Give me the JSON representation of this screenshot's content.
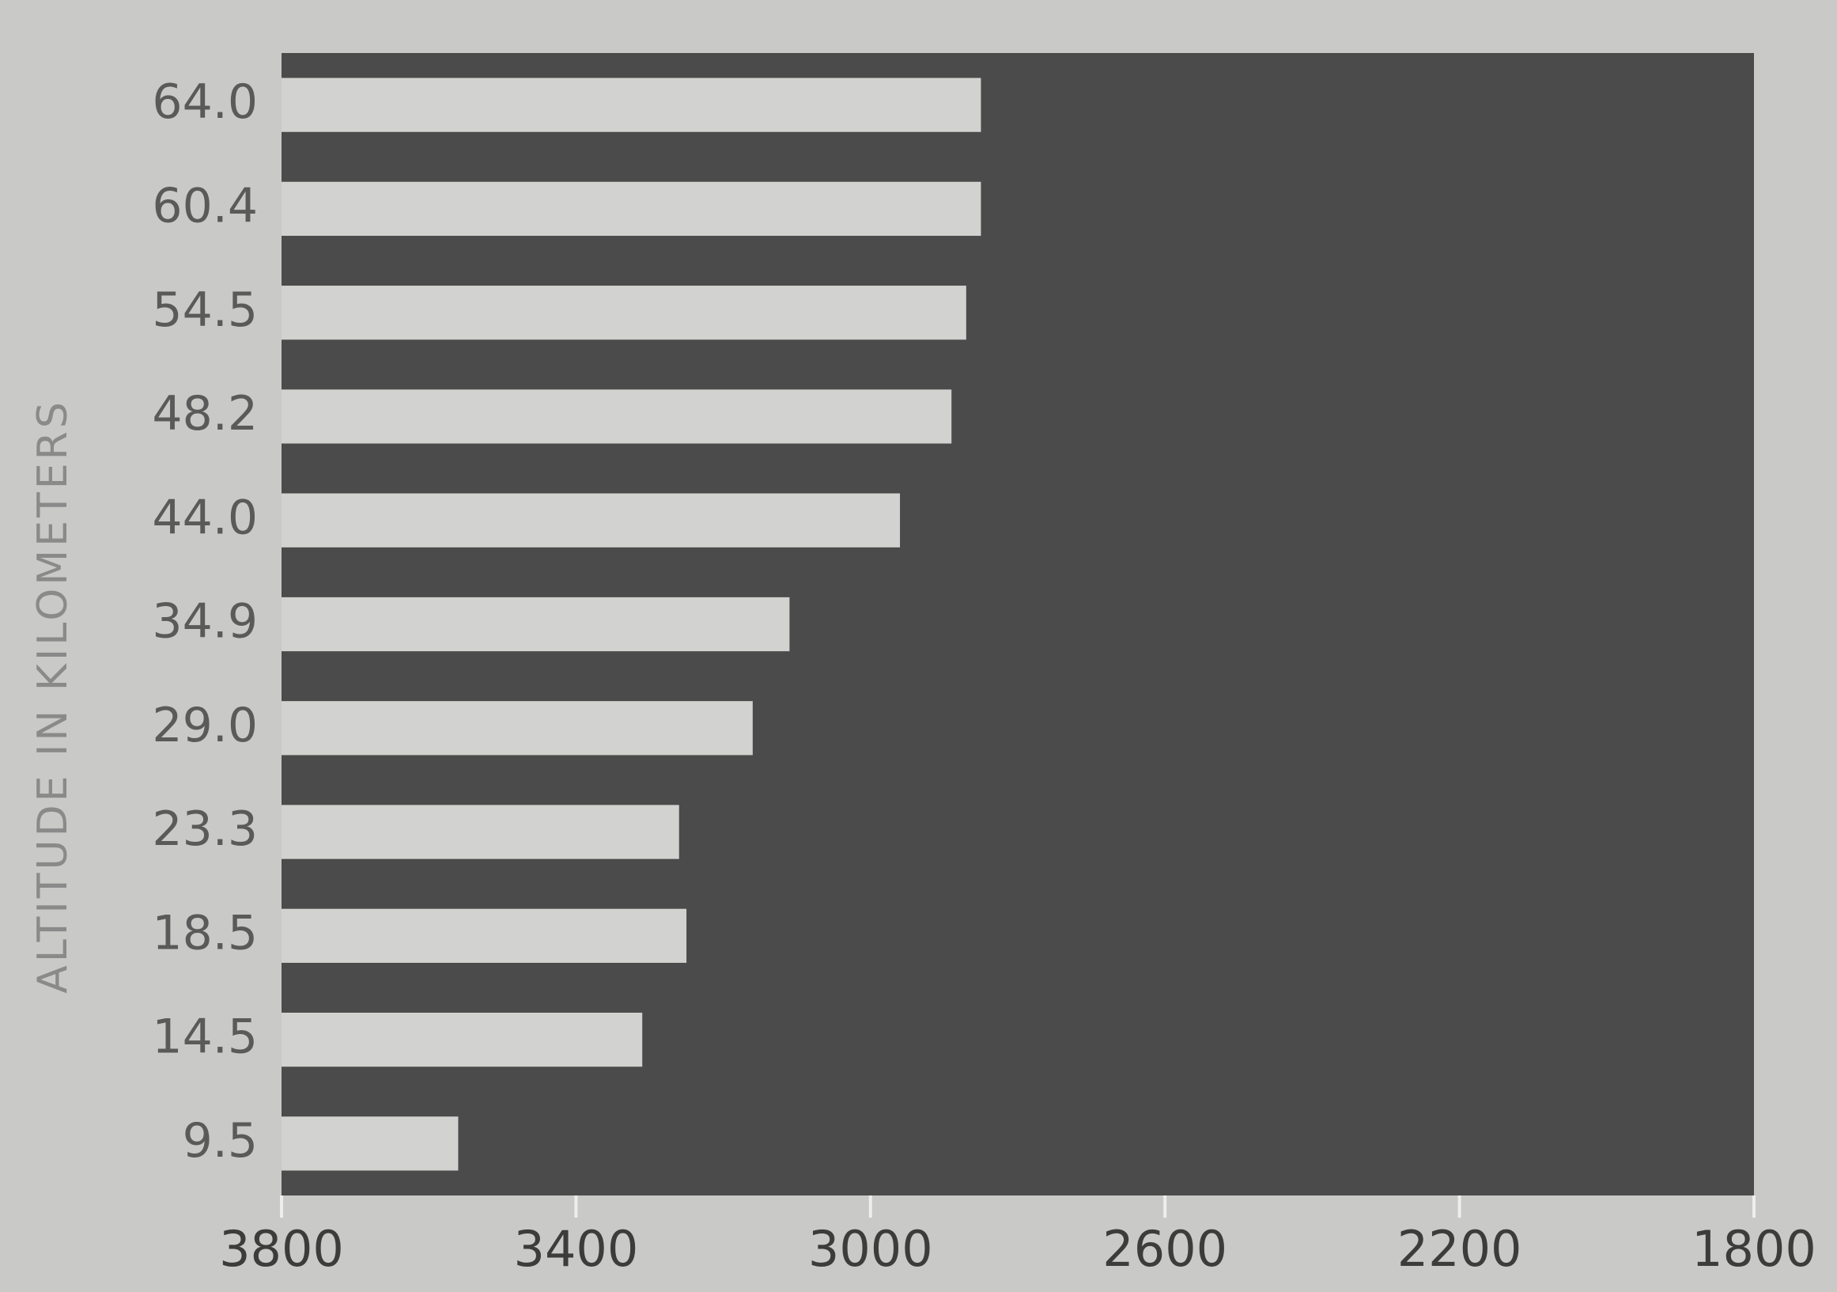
{
  "chart_data": {
    "type": "bar",
    "orientation": "horizontal",
    "y_label": "ALTITUDE IN KILOMETERS",
    "categories": [
      "64.0",
      "60.4",
      "54.5",
      "48.2",
      "44.0",
      "34.9",
      "29.0",
      "23.3",
      "18.5",
      "14.5",
      "9.5"
    ],
    "values": [
      2850,
      2850,
      2870,
      2890,
      2960,
      3110,
      3160,
      3260,
      3250,
      3310,
      3560
    ],
    "color": "#d2d2d0",
    "xlim": [
      3800,
      1800
    ],
    "xticks": [
      3800,
      3400,
      3000,
      2600,
      2200,
      1800
    ]
  }
}
